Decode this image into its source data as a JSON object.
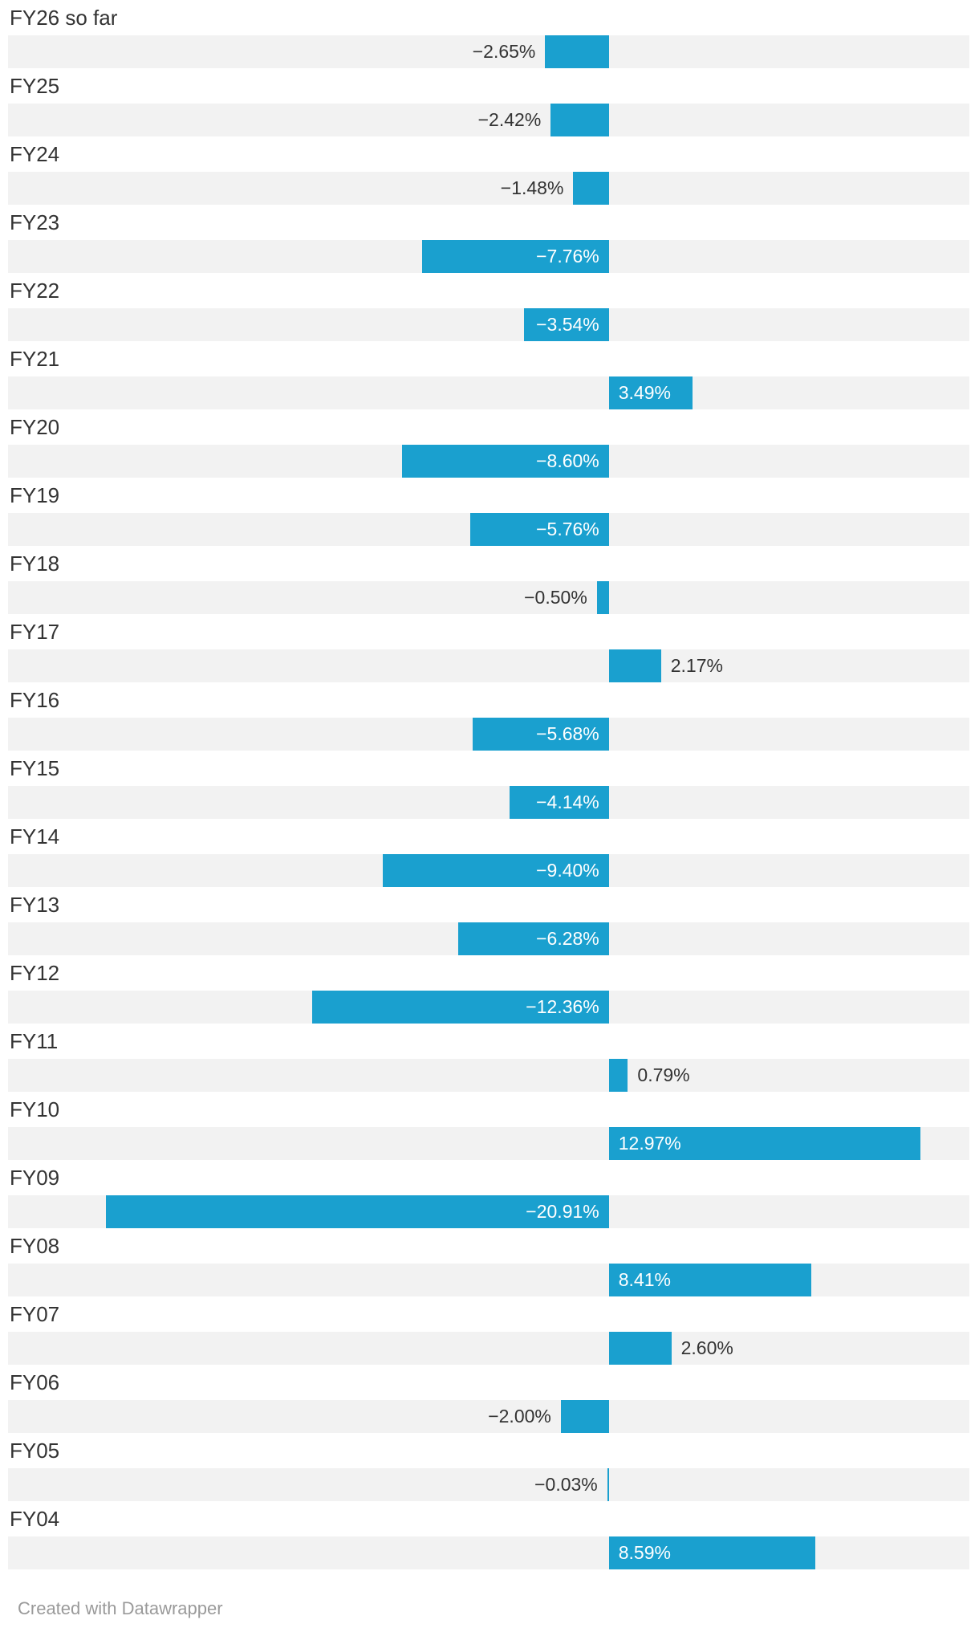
{
  "chart_data": {
    "type": "bar",
    "orientation": "horizontal",
    "title": "",
    "xlabel": "",
    "ylabel": "",
    "xlim": [
      -25,
      15
    ],
    "grid": false,
    "legend": "none",
    "bar_color": "#1aa0cf",
    "track_color": "#f2f2f2",
    "categories": [
      "FY26 so far",
      "FY25",
      "FY24",
      "FY23",
      "FY22",
      "FY21",
      "FY20",
      "FY19",
      "FY18",
      "FY17",
      "FY16",
      "FY15",
      "FY14",
      "FY13",
      "FY12",
      "FY11",
      "FY10",
      "FY09",
      "FY08",
      "FY07",
      "FY06",
      "FY05",
      "FY04"
    ],
    "values": [
      -2.65,
      -2.42,
      -1.48,
      -7.76,
      -3.54,
      3.49,
      -8.6,
      -5.76,
      -0.5,
      2.17,
      -5.68,
      -4.14,
      -9.4,
      -6.28,
      -12.36,
      0.79,
      12.97,
      -20.91,
      8.41,
      2.6,
      -2.0,
      -0.03,
      8.59
    ],
    "value_labels": [
      "−2.65%",
      "−2.42%",
      "−1.48%",
      "−7.76%",
      "−3.54%",
      "3.49%",
      "−8.60%",
      "−5.76%",
      "−0.50%",
      "2.17%",
      "−5.68%",
      "−4.14%",
      "−9.40%",
      "−6.28%",
      "−12.36%",
      "0.79%",
      "12.97%",
      "−20.91%",
      "8.41%",
      "2.60%",
      "−2.00%",
      "−0.03%",
      "8.59%"
    ]
  },
  "footer": {
    "credit": "Created with Datawrapper"
  }
}
